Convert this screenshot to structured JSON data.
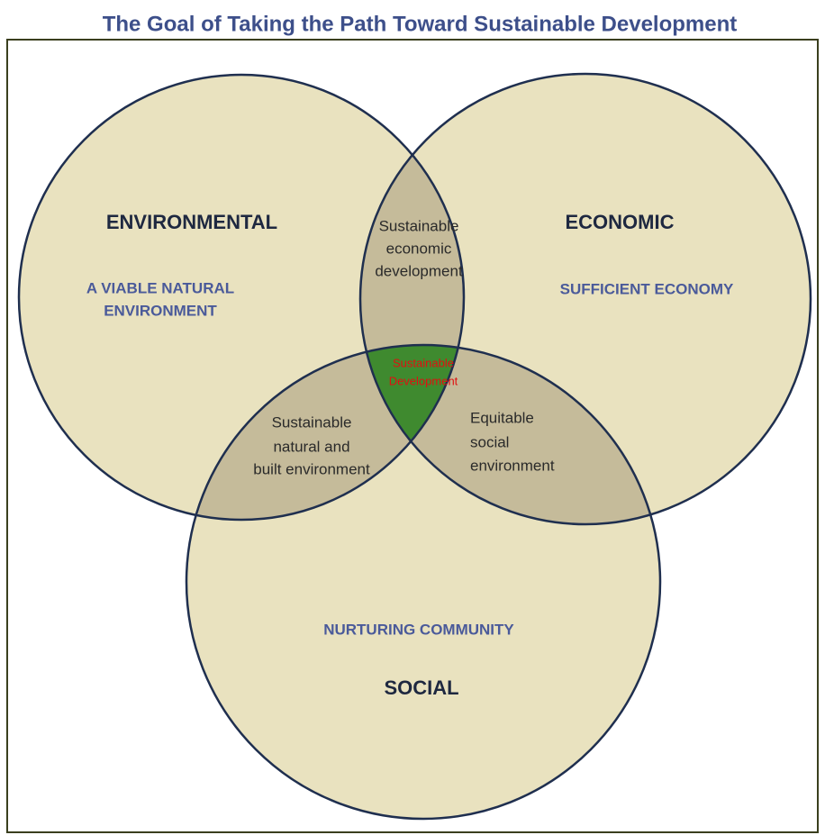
{
  "title": "The Goal of Taking the Path Toward Sustainable Development",
  "circles": [
    {
      "label": "ENVIRONMENTAL",
      "sublabel": [
        "A VIABLE NATURAL",
        "ENVIRONMENT"
      ]
    },
    {
      "label": "ECONOMIC",
      "sublabel": [
        "SUFFICIENT ECONOMY"
      ]
    },
    {
      "label": "SOCIAL",
      "sublabel": [
        "NURTURING COMMUNITY"
      ]
    }
  ],
  "intersections": [
    {
      "lines": [
        "Sustainable",
        "economic",
        "development"
      ]
    },
    {
      "lines": [
        "Sustainable",
        "natural and",
        "built environment"
      ]
    },
    {
      "lines": [
        "Equitable",
        "social",
        "environment"
      ]
    },
    {
      "lines": [
        "Sustainable",
        "Development"
      ]
    }
  ]
}
